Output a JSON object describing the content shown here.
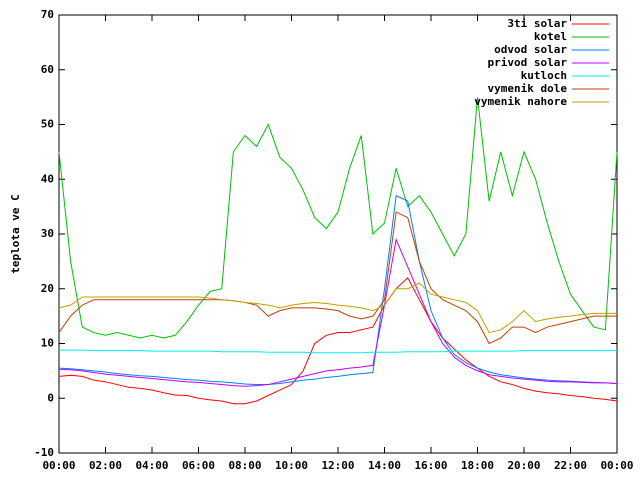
{
  "chart_data": {
    "type": "line",
    "ylabel": "teplota ve C",
    "xlim": [
      0,
      24
    ],
    "ylim": [
      -10,
      70
    ],
    "yticks": [
      -10,
      0,
      10,
      20,
      30,
      40,
      50,
      60,
      70
    ],
    "xticks": [
      {
        "value": 0,
        "label": "00:00"
      },
      {
        "value": 2,
        "label": "02:00"
      },
      {
        "value": 4,
        "label": "04:00"
      },
      {
        "value": 6,
        "label": "06:00"
      },
      {
        "value": 8,
        "label": "08:00"
      },
      {
        "value": 10,
        "label": "10:00"
      },
      {
        "value": 12,
        "label": "12:00"
      },
      {
        "value": 14,
        "label": "14:00"
      },
      {
        "value": 16,
        "label": "16:00"
      },
      {
        "value": 18,
        "label": "18:00"
      },
      {
        "value": 20,
        "label": "20:00"
      },
      {
        "value": 22,
        "label": "22:00"
      },
      {
        "value": 24,
        "label": "00:00"
      }
    ],
    "grid": false,
    "legend": "top-right",
    "x": [
      0,
      0.5,
      1,
      1.5,
      2,
      2.5,
      3,
      3.5,
      4,
      4.5,
      5,
      5.5,
      6,
      6.5,
      7,
      7.5,
      8,
      8.5,
      9,
      9.5,
      10,
      10.5,
      11,
      11.5,
      12,
      12.5,
      13,
      13.5,
      14,
      14.5,
      15,
      15.5,
      16,
      16.5,
      17,
      17.5,
      18,
      18.5,
      19,
      19.5,
      20,
      20.5,
      21,
      21.5,
      22,
      22.5,
      23,
      23.5,
      24
    ],
    "series": [
      {
        "name": "3ti solar",
        "color": "#ff0000",
        "values": [
          4,
          4.2,
          4,
          3.3,
          3,
          2.5,
          2,
          1.8,
          1.5,
          1,
          0.6,
          0.5,
          0,
          -0.3,
          -0.5,
          -1,
          -1,
          -0.5,
          0.5,
          1.5,
          2.5,
          5,
          10,
          11.5,
          12,
          12,
          12.5,
          13,
          17,
          20,
          22,
          18,
          14,
          11,
          9,
          7,
          5.5,
          4,
          3,
          2.5,
          1.8,
          1.3,
          1,
          0.8,
          0.5,
          0.3,
          0,
          -0.2,
          -0.5
        ]
      },
      {
        "name": "kotel",
        "color": "#00c000",
        "values": [
          45,
          25,
          13,
          12,
          11.5,
          12,
          11.5,
          11,
          11.5,
          11,
          11.5,
          14,
          17,
          19.5,
          20,
          45,
          48,
          46,
          50,
          44,
          42,
          38,
          33,
          31,
          34,
          42,
          48,
          30,
          32,
          42,
          35,
          37,
          34,
          30,
          26,
          30,
          55,
          36,
          45,
          37,
          45,
          40,
          32,
          25,
          19,
          16,
          13,
          12.5,
          45
        ]
      },
      {
        "name": "odvod solar",
        "color": "#0080ff",
        "values": [
          5.5,
          5.4,
          5.2,
          5,
          4.8,
          4.5,
          4.3,
          4.1,
          4,
          3.8,
          3.6,
          3.4,
          3.3,
          3.1,
          3,
          2.8,
          2.6,
          2.5,
          2.5,
          2.7,
          3,
          3.3,
          3.5,
          3.8,
          4,
          4.3,
          4.5,
          4.7,
          20,
          37,
          36,
          25,
          16,
          11,
          8,
          6.5,
          5.5,
          4.8,
          4.3,
          4,
          3.7,
          3.5,
          3.3,
          3.2,
          3.1,
          3,
          2.9,
          2.8,
          2.7
        ]
      },
      {
        "name": "privod solar",
        "color": "#c000ff",
        "values": [
          5.3,
          5.2,
          5,
          4.7,
          4.4,
          4.2,
          4,
          3.8,
          3.6,
          3.4,
          3.2,
          3,
          2.9,
          2.7,
          2.5,
          2.3,
          2.2,
          2.3,
          2.5,
          3,
          3.5,
          4,
          4.5,
          5,
          5.2,
          5.5,
          5.7,
          6,
          17,
          29,
          24,
          19,
          14,
          10,
          7.5,
          6,
          5,
          4.3,
          4,
          3.7,
          3.5,
          3.3,
          3.1,
          3,
          3,
          2.9,
          2.8,
          2.8,
          2.7
        ]
      },
      {
        "name": "kutloch",
        "color": "#00eeee",
        "values": [
          8.8,
          8.8,
          8.8,
          8.7,
          8.7,
          8.7,
          8.7,
          8.7,
          8.6,
          8.6,
          8.6,
          8.6,
          8.6,
          8.6,
          8.5,
          8.5,
          8.5,
          8.5,
          8.4,
          8.4,
          8.4,
          8.4,
          8.3,
          8.3,
          8.3,
          8.3,
          8.3,
          8.4,
          8.4,
          8.4,
          8.5,
          8.5,
          8.5,
          8.5,
          8.6,
          8.6,
          8.6,
          8.6,
          8.6,
          8.6,
          8.7,
          8.7,
          8.7,
          8.7,
          8.7,
          8.7,
          8.7,
          8.7,
          8.7
        ]
      },
      {
        "name": "vymenik dole",
        "color": "#c04000",
        "values": [
          12,
          15,
          17,
          18,
          18,
          18,
          18,
          18,
          18,
          18,
          18,
          18,
          18,
          18,
          18,
          17.8,
          17.5,
          17,
          15,
          16,
          16.5,
          16.5,
          16.5,
          16.3,
          16,
          15,
          14.5,
          15,
          18,
          34,
          33,
          25,
          20,
          18,
          17,
          16,
          14,
          10,
          11,
          13,
          13,
          12,
          13,
          13.5,
          14,
          14.5,
          15,
          15,
          15
        ]
      },
      {
        "name": "vymenik nahore",
        "color": "#c0a000",
        "values": [
          16.5,
          17,
          18.5,
          18.5,
          18.5,
          18.5,
          18.5,
          18.5,
          18.5,
          18.5,
          18.5,
          18.5,
          18.5,
          18.3,
          18,
          17.8,
          17.5,
          17.3,
          17,
          16.5,
          17,
          17.3,
          17.5,
          17.3,
          17,
          16.8,
          16.5,
          16,
          17,
          20,
          20,
          21,
          19,
          18.5,
          18,
          17.5,
          16,
          12,
          12.5,
          14,
          16,
          14,
          14.5,
          14.8,
          15,
          15.3,
          15.5,
          15.5,
          15.5
        ]
      }
    ]
  }
}
